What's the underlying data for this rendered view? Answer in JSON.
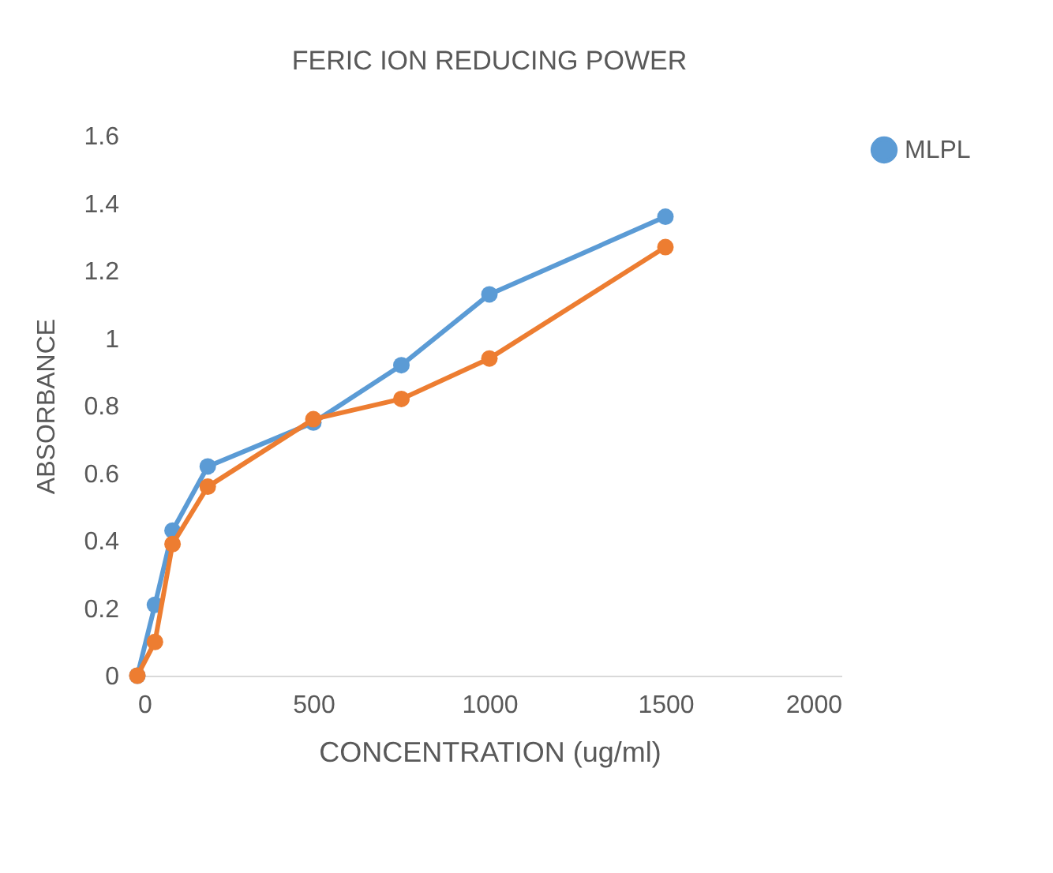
{
  "chart_data": {
    "type": "line",
    "title": "FERIC ION REDUCING POWER",
    "xlabel": "CONCENTRATION (ug/ml)",
    "ylabel": "ABSORBANCE",
    "x": [
      0,
      50,
      100,
      200,
      500,
      750,
      1000,
      1500
    ],
    "series": [
      {
        "name": "MLPL",
        "color": "#5b9bd5",
        "values": [
          0,
          0.21,
          0.43,
          0.62,
          0.75,
          0.92,
          1.13,
          1.36
        ]
      },
      {
        "color": "#ed7d31",
        "values": [
          0,
          0.1,
          0.39,
          0.56,
          0.76,
          0.82,
          0.94,
          1.27
        ]
      }
    ],
    "xlim": [
      0,
      2000
    ],
    "xticks": [
      0,
      500,
      1000,
      1500,
      2000
    ],
    "ylim": [
      0,
      1.6
    ],
    "yticks": [
      0,
      0.2,
      0.4,
      0.6,
      0.8,
      1,
      1.2,
      1.4,
      1.6
    ],
    "grid": false,
    "legend": "top right",
    "marker": "circle",
    "line_style": "solid"
  }
}
